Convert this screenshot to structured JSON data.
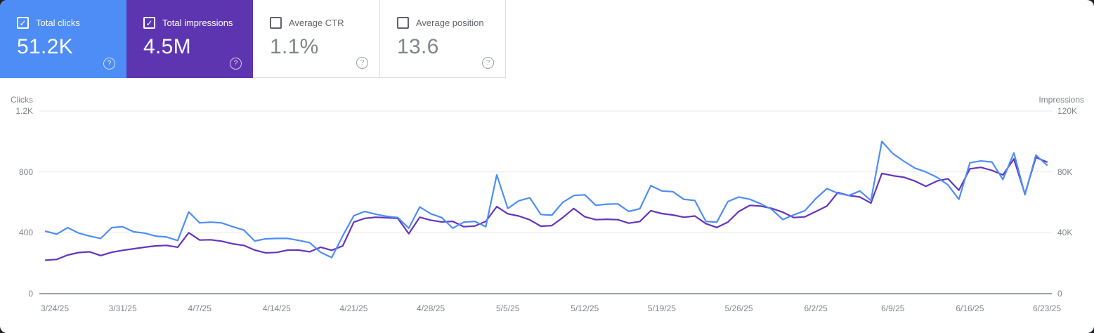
{
  "cards": [
    {
      "label": "Total clicks",
      "value": "51.2K",
      "checked": true,
      "selected": true,
      "color": "#4d8df5"
    },
    {
      "label": "Total impressions",
      "value": "4.5M",
      "checked": true,
      "selected": true,
      "color": "#5e35b1"
    },
    {
      "label": "Average CTR",
      "value": "1.1%",
      "checked": false,
      "selected": false,
      "color": "#ffffff"
    },
    {
      "label": "Average position",
      "value": "13.6",
      "checked": false,
      "selected": false,
      "color": "#ffffff"
    }
  ],
  "icons": {
    "check": "✓",
    "help": "?"
  },
  "chart_data": {
    "type": "line",
    "x_frequency": "daily",
    "x_range": [
      "3/24/25",
      "6/23/25"
    ],
    "x_tick_labels": [
      "3/24/25",
      "3/31/25",
      "4/7/25",
      "4/14/25",
      "4/21/25",
      "4/28/25",
      "5/5/25",
      "5/12/25",
      "5/19/25",
      "5/26/25",
      "6/2/25",
      "6/9/25",
      "6/16/25",
      "6/23/25"
    ],
    "left_axis": {
      "title": "Clicks",
      "tick_labels": [
        "0",
        "400",
        "800",
        "1.2K"
      ],
      "tick_values": [
        0,
        400,
        800,
        1200
      ],
      "max": 1200
    },
    "right_axis": {
      "title": "Impressions",
      "tick_labels": [
        "0",
        "40K",
        "80K",
        "120K"
      ],
      "tick_values": [
        0,
        40,
        80,
        120
      ],
      "max": 120,
      "unit": "thousands"
    },
    "grid": true,
    "legend": "none",
    "series": [
      {
        "name": "Total clicks",
        "axis": "left",
        "color": "#4e8df6",
        "values": [
          410,
          391,
          434,
          398,
          378,
          363,
          434,
          440,
          406,
          398,
          378,
          372,
          349,
          537,
          465,
          470,
          465,
          440,
          418,
          346,
          360,
          363,
          363,
          350,
          335,
          271,
          237,
          380,
          512,
          540,
          522,
          508,
          500,
          430,
          570,
          525,
          500,
          430,
          470,
          475,
          440,
          780,
          560,
          610,
          630,
          520,
          515,
          600,
          645,
          650,
          580,
          588,
          590,
          540,
          558,
          710,
          675,
          670,
          620,
          612,
          475,
          470,
          605,
          635,
          620,
          590,
          553,
          487,
          518,
          545,
          625,
          690,
          660,
          645,
          675,
          612,
          1000,
          920,
          870,
          825,
          800,
          765,
          715,
          620,
          860,
          872,
          865,
          750,
          925,
          650,
          910,
          845
        ]
      },
      {
        "name": "Total impressions",
        "axis": "right",
        "color": "#6434bc",
        "values": [
          22,
          22.5,
          25.4,
          27,
          27.5,
          25,
          27.2,
          28.5,
          29.5,
          30.5,
          31.4,
          31.7,
          30.5,
          40,
          35.2,
          35.4,
          34.5,
          32.7,
          31.7,
          28.6,
          26.8,
          27.1,
          28.6,
          28.6,
          27.5,
          30.5,
          28.5,
          31.4,
          47,
          49.5,
          50.2,
          49.9,
          49.5,
          39.4,
          50.2,
          48.3,
          47.1,
          47.5,
          44,
          44.4,
          47.5,
          57.2,
          52.5,
          51,
          48.5,
          44.3,
          44.7,
          50,
          56,
          50.5,
          48.6,
          48.9,
          48.6,
          46.3,
          47.4,
          54.5,
          52.6,
          51.7,
          50.2,
          51,
          46,
          43.5,
          47,
          54,
          58,
          57.5,
          56,
          53.5,
          50,
          50.5,
          54,
          57.5,
          66.5,
          64.5,
          63.5,
          59.5,
          79,
          77.5,
          76.5,
          74,
          70.5,
          74,
          75.5,
          68,
          82,
          83,
          81,
          78,
          88.5,
          65.5,
          89.5,
          86.5
        ]
      }
    ],
    "style": {
      "gridline_color": "#e9eaee",
      "axis_line_color": "#9aa0a6",
      "tick_text_color": "#80868b"
    }
  }
}
